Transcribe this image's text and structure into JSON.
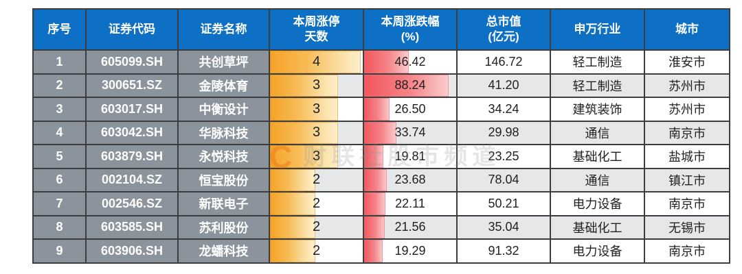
{
  "colors": {
    "header_bg": "#0d70c5",
    "header_text": "#ffffff",
    "label_column_bg": "#8b939c",
    "alt_row_bg": "#e6e7e8",
    "grid_border": "#3b3d40",
    "bar_orange": "#f5a227",
    "bar_red": "#f2575c",
    "watermark_orange": "#ed7d1b"
  },
  "watermark": {
    "logo": "C",
    "label": "财联社股市频道"
  },
  "table": {
    "columns": [
      {
        "key": "idx",
        "label": "序号"
      },
      {
        "key": "code",
        "label": "证券代码"
      },
      {
        "key": "name",
        "label": "证券名称"
      },
      {
        "key": "days",
        "label": "本周涨停\n天数"
      },
      {
        "key": "chg",
        "label": "本周涨跌幅\n(%)"
      },
      {
        "key": "mcap",
        "label": "总市值\n(亿元)"
      },
      {
        "key": "industry",
        "label": "申万行业"
      },
      {
        "key": "city",
        "label": "城市"
      }
    ],
    "rows": [
      {
        "idx": "1",
        "code": "605099.SH",
        "name": "共创草坪",
        "days": "4",
        "chg": "46.42",
        "mcap": "146.72",
        "industry": "轻工制造",
        "city": "淮安市"
      },
      {
        "idx": "2",
        "code": "300651.SZ",
        "name": "金陵体育",
        "days": "3",
        "chg": "88.24",
        "mcap": "41.20",
        "industry": "轻工制造",
        "city": "苏州市"
      },
      {
        "idx": "3",
        "code": "603017.SH",
        "name": "中衡设计",
        "days": "3",
        "chg": "26.50",
        "mcap": "34.24",
        "industry": "建筑装饰",
        "city": "苏州市"
      },
      {
        "idx": "4",
        "code": "603042.SH",
        "name": "华脉科技",
        "days": "3",
        "chg": "33.74",
        "mcap": "29.98",
        "industry": "通信",
        "city": "南京市"
      },
      {
        "idx": "5",
        "code": "603879.SH",
        "name": "永悦科技",
        "days": "3",
        "chg": "19.81",
        "mcap": "23.25",
        "industry": "基础化工",
        "city": "盐城市"
      },
      {
        "idx": "6",
        "code": "002104.SZ",
        "name": "恒宝股份",
        "days": "2",
        "chg": "23.68",
        "mcap": "78.04",
        "industry": "通信",
        "city": "镇江市"
      },
      {
        "idx": "7",
        "code": "002546.SZ",
        "name": "新联电子",
        "days": "2",
        "chg": "22.11",
        "mcap": "50.21",
        "industry": "电力设备",
        "city": "南京市"
      },
      {
        "idx": "8",
        "code": "603585.SH",
        "name": "苏利股份",
        "days": "2",
        "chg": "21.56",
        "mcap": "35.04",
        "industry": "基础化工",
        "city": "无锡市"
      },
      {
        "idx": "9",
        "code": "603906.SH",
        "name": "龙蟠科技",
        "days": "2",
        "chg": "19.29",
        "mcap": "91.32",
        "industry": "电力设备",
        "city": "南京市"
      }
    ]
  },
  "chart_data": {
    "type": "table",
    "title": "",
    "columns": [
      "序号",
      "证券代码",
      "证券名称",
      "本周涨停天数",
      "本周涨跌幅(%)",
      "总市值(亿元)",
      "申万行业",
      "城市"
    ],
    "rows": [
      [
        1,
        "605099.SH",
        "共创草坪",
        4,
        46.42,
        146.72,
        "轻工制造",
        "淮安市"
      ],
      [
        2,
        "300651.SZ",
        "金陵体育",
        3,
        88.24,
        41.2,
        "轻工制造",
        "苏州市"
      ],
      [
        3,
        "603017.SH",
        "中衡设计",
        3,
        26.5,
        34.24,
        "建筑装饰",
        "苏州市"
      ],
      [
        4,
        "603042.SH",
        "华脉科技",
        3,
        33.74,
        29.98,
        "通信",
        "南京市"
      ],
      [
        5,
        "603879.SH",
        "永悦科技",
        3,
        19.81,
        23.25,
        "基础化工",
        "盐城市"
      ],
      [
        6,
        "002104.SZ",
        "恒宝股份",
        2,
        23.68,
        78.04,
        "通信",
        "镇江市"
      ],
      [
        7,
        "002546.SZ",
        "新联电子",
        2,
        22.11,
        50.21,
        "电力设备",
        "南京市"
      ],
      [
        8,
        "603585.SH",
        "苏利股份",
        2,
        21.56,
        35.04,
        "基础化工",
        "无锡市"
      ],
      [
        9,
        "603906.SH",
        "龙蟠科技",
        2,
        19.29,
        91.32,
        "电力设备",
        "南京市"
      ]
    ],
    "in_cell_bars": [
      {
        "column": "本周涨停天数",
        "style": "orange-gradient",
        "scale_max": 4
      },
      {
        "column": "本周涨跌幅(%)",
        "style": "red-gradient",
        "scale_max": 88.24
      }
    ],
    "layout": {
      "header_style": "blue",
      "label_columns_style": "gray",
      "body_alternating": true,
      "grid": true
    }
  }
}
